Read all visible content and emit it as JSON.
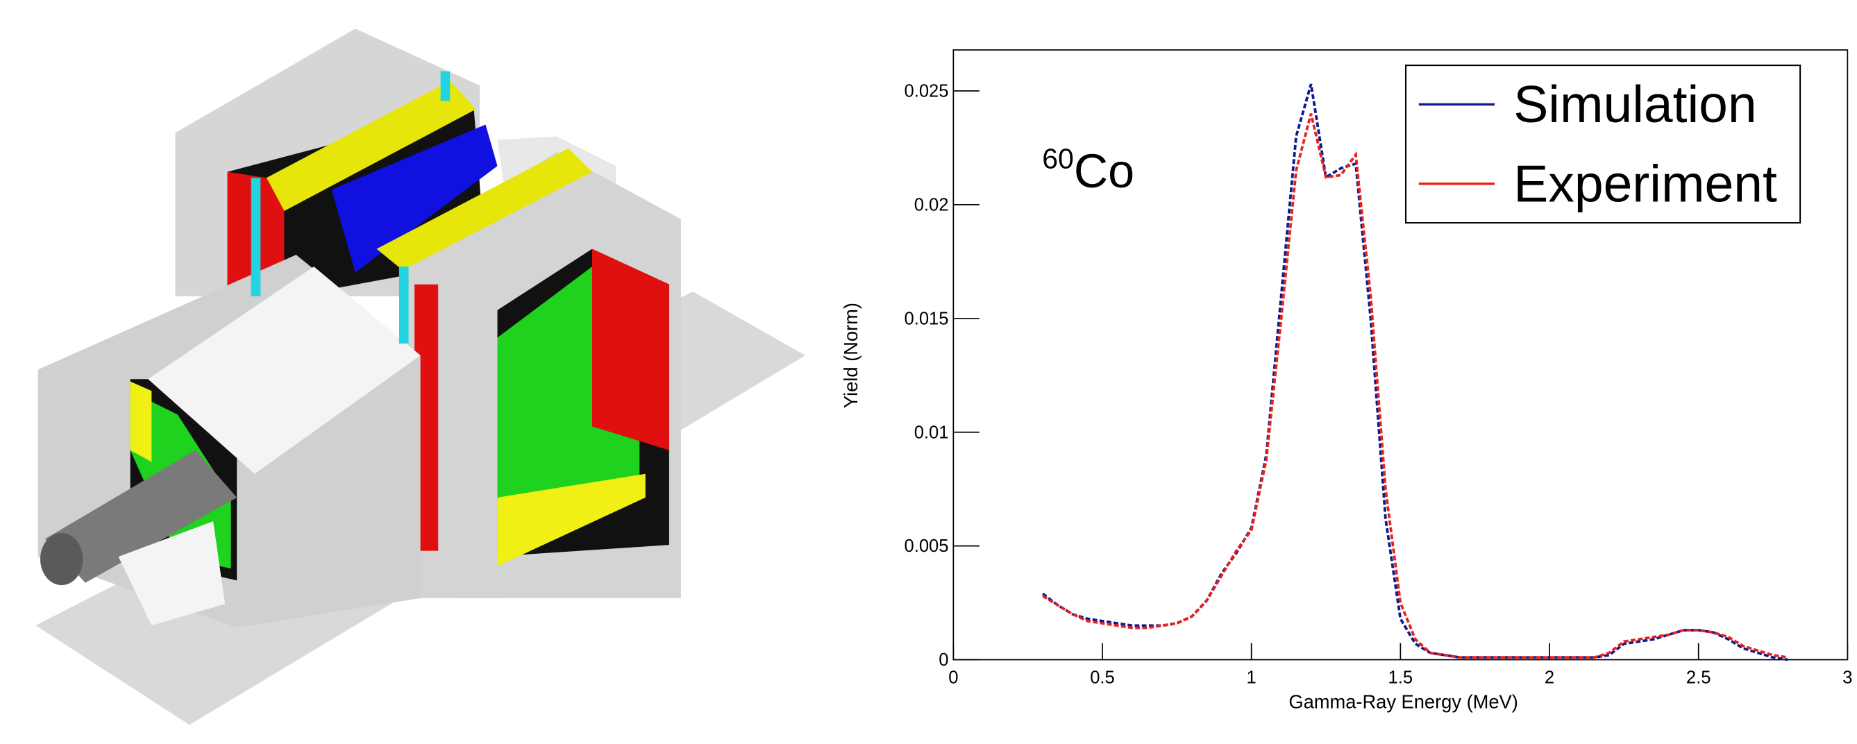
{
  "chart_data": {
    "type": "line",
    "annotation": {
      "superscript": "60",
      "text": "Co"
    },
    "x_label": "Gamma-Ray Energy (MeV)",
    "y_label": "Yield (Norm)",
    "x": [
      0.3,
      0.35,
      0.4,
      0.45,
      0.5,
      0.55,
      0.6,
      0.65,
      0.7,
      0.75,
      0.8,
      0.85,
      0.9,
      0.95,
      1.0,
      1.05,
      1.1,
      1.15,
      1.2,
      1.25,
      1.3,
      1.35,
      1.4,
      1.45,
      1.5,
      1.55,
      1.6,
      1.65,
      1.7,
      1.75,
      1.8,
      1.85,
      1.9,
      1.95,
      2.0,
      2.05,
      2.1,
      2.15,
      2.2,
      2.25,
      2.3,
      2.35,
      2.4,
      2.45,
      2.5,
      2.55,
      2.6,
      2.65,
      2.7,
      2.75,
      2.8
    ],
    "series": [
      {
        "name": "Simulation",
        "color": "#0b1a8c",
        "values": [
          0.0029,
          0.0024,
          0.002,
          0.0018,
          0.0017,
          0.0016,
          0.0015,
          0.0015,
          0.0015,
          0.0016,
          0.0019,
          0.0026,
          0.0038,
          0.0047,
          0.0058,
          0.009,
          0.016,
          0.023,
          0.0253,
          0.0212,
          0.0216,
          0.0218,
          0.015,
          0.0062,
          0.0018,
          0.0007,
          0.0003,
          0.0002,
          0.0001,
          0.0001,
          0.0001,
          0.0001,
          0.0001,
          0.0001,
          0.0001,
          0.0001,
          0.0001,
          0.0001,
          0.0002,
          0.0007,
          0.0008,
          0.0009,
          0.0011,
          0.0013,
          0.0013,
          0.0012,
          0.0009,
          0.0005,
          0.0003,
          0.0001,
          0
        ]
      },
      {
        "name": "Experiment",
        "color": "#e8201a",
        "values": [
          0.0028,
          0.0024,
          0.002,
          0.0017,
          0.0016,
          0.0015,
          0.0014,
          0.0014,
          0.0015,
          0.0016,
          0.0019,
          0.0026,
          0.0037,
          0.0048,
          0.0057,
          0.0088,
          0.015,
          0.0215,
          0.024,
          0.0212,
          0.0213,
          0.0222,
          0.016,
          0.0075,
          0.0025,
          0.0009,
          0.0003,
          0.0002,
          0.0001,
          0.0001,
          0.0001,
          0.0001,
          0.0001,
          0.0001,
          0.0001,
          0.0001,
          0.0001,
          0.0001,
          0.0003,
          0.0008,
          0.0009,
          0.001,
          0.0011,
          0.0013,
          0.0013,
          0.0012,
          0.001,
          0.0006,
          0.0004,
          0.0002,
          0.0001
        ]
      }
    ],
    "xlim": [
      0,
      3
    ],
    "xticks": [
      0,
      0.5,
      1,
      1.5,
      2,
      2.5,
      3
    ],
    "ylim": [
      0,
      0.0268
    ],
    "yticks": [
      0,
      0.005,
      0.01,
      0.015,
      0.02,
      0.025
    ],
    "legend": "top-right"
  }
}
